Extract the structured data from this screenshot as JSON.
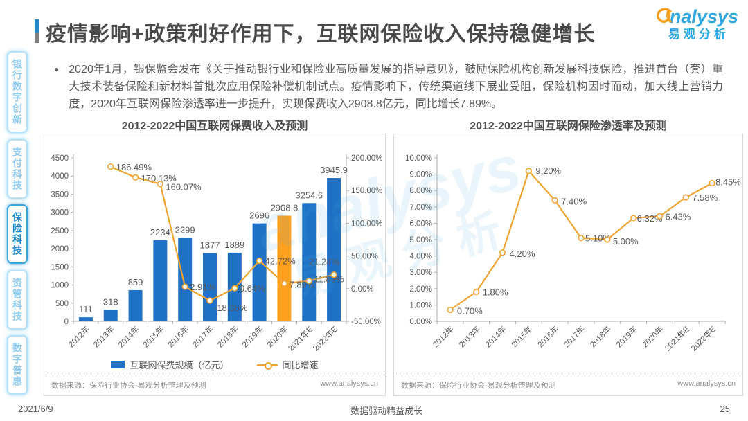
{
  "header": {
    "title": "疫情影响+政策利好作用下，互联网保险收入保持稳健增长",
    "logo": {
      "brand": "analysys",
      "brand_cn": "易观分析"
    }
  },
  "intro": {
    "bullet": "●",
    "text": "2020年1月，银保监会发布《关于推动银行业和保险业高质量发展的指导意见》，鼓励保险机构创新发展科技保险，推进首台（套）重大技术装备保险和新材料首批次应用保险补偿机制试点。疫情影响下，传统渠道线下展业受阻，保险机构因时而动，加大线上营销力度，2020年互联网保险渗透率进一步提升，实现保费收入2908.8亿元，同比增长7.89%。"
  },
  "sidebar": {
    "items": [
      {
        "label": "银行数字创新",
        "active": false
      },
      {
        "label": "支付科技",
        "active": false
      },
      {
        "label": "保险科技",
        "active": true
      },
      {
        "label": "资管科技",
        "active": false
      },
      {
        "label": "数字普惠",
        "active": false
      }
    ]
  },
  "watermark": {
    "line1": "analysys",
    "line2": "易观分析"
  },
  "chart_data": [
    {
      "type": "bar",
      "title": "2012-2022中国互联网保费收入及预测",
      "categories": [
        "2012年",
        "2013年",
        "2014年",
        "2015年",
        "2016年",
        "2017年",
        "2018年",
        "2019年",
        "2020年",
        "2021年E",
        "2022年E"
      ],
      "series": [
        {
          "name": "互联网保费规模（亿元）",
          "type": "bar",
          "axis": "left",
          "color": "#1f72c6",
          "highlight": {
            "index": 8,
            "color": "#ffa01e"
          },
          "values": [
            111,
            318,
            859,
            2234,
            2299,
            1877,
            1889,
            2696,
            2908.8,
            3254.6,
            3945.9
          ],
          "labels": [
            "111",
            "318",
            "859",
            "2234",
            "2299",
            "1877",
            "1889",
            "2696",
            "2908.8",
            "3254.6",
            "3945.9"
          ]
        },
        {
          "name": "同比增速",
          "type": "line",
          "axis": "right",
          "color": "#f0a32f",
          "start_index": 1,
          "values": [
            186.49,
            170.13,
            160.07,
            2.91,
            -18.36,
            0.64,
            42.72,
            7.89,
            11.89,
            21.24
          ],
          "labels": [
            "186.49%",
            "170.13%",
            "160.07%",
            "2.91%",
            "-18.36%",
            "0.64%",
            "42.72%",
            "7.89%",
            "11.89%",
            "21.24%"
          ],
          "label_offsets": [
            [
              8,
              5
            ],
            [
              8,
              6
            ],
            [
              8,
              9
            ],
            [
              7,
              5
            ],
            [
              6,
              15
            ],
            [
              7,
              5
            ],
            [
              8,
              5
            ],
            [
              7,
              6
            ],
            [
              7,
              2
            ],
            [
              8,
              -14,
              "end"
            ]
          ]
        }
      ],
      "axes": {
        "left": {
          "min": 0,
          "max": 4500,
          "ticks": [
            "4500",
            "4000",
            "3500",
            "3000",
            "2500",
            "2000",
            "1500",
            "1000",
            "500",
            "0"
          ]
        },
        "right": {
          "min": -50,
          "max": 200,
          "ticks": [
            "200.00%",
            "150.00%",
            "100.00%",
            "50.00%",
            "0.00%",
            "-50.00%"
          ]
        }
      },
      "legend_position": "bottom",
      "grid": false,
      "source": "数据来源：保险行业协会·易观分析整理及预测",
      "site": "www.analysys.cn"
    },
    {
      "type": "line",
      "title": "2012-2022中国互联网保险渗透率及预测",
      "categories": [
        "2012年",
        "2013年",
        "2014年",
        "2015年",
        "2016年",
        "2017年",
        "2018年",
        "2019年",
        "2020年",
        "2021年E",
        "2022年E"
      ],
      "series": [
        {
          "name": "互联网保险渗透率",
          "type": "line",
          "axis": "left",
          "color": "#f0a32f",
          "start_index": 0,
          "values": [
            0.7,
            1.8,
            4.2,
            9.2,
            7.4,
            5.1,
            5.0,
            6.32,
            6.43,
            7.58,
            8.45
          ],
          "labels": [
            "0.70%",
            "1.80%",
            "4.20%",
            "9.20%",
            "7.40%",
            "5.10%",
            "5.00%",
            "6.32%",
            "6.43%",
            "7.58%",
            "8.45%"
          ],
          "label_offsets": [
            [
              10,
              6
            ],
            [
              9,
              5
            ],
            [
              10,
              6
            ],
            [
              10,
              4
            ],
            [
              9,
              6
            ],
            [
              6,
              5
            ],
            [
              8,
              7
            ],
            [
              5,
              5
            ],
            [
              8,
              5
            ],
            [
              9,
              5
            ],
            [
              5,
              3
            ]
          ]
        }
      ],
      "axes": {
        "left": {
          "min": 0,
          "max": 10,
          "ticks": [
            "10.00%",
            "9.00%",
            "8.00%",
            "7.00%",
            "6.00%",
            "5.00%",
            "4.00%",
            "3.00%",
            "2.00%",
            "1.00%",
            "0.00%"
          ]
        }
      },
      "legend_position": "none",
      "grid": false,
      "source": "数据来源：保险行业协会·易观分析整理及预测",
      "site": "www.analysys.cn"
    }
  ],
  "footer": {
    "date": "2021/6/9",
    "slogan": "数据驱动精益成长",
    "page": "25"
  },
  "colors": {
    "bar_blue": "#1f72c6",
    "bar_highlight": "#ffa01e",
    "line_orange": "#f0a32f",
    "brand_blue": "#2ea7e0"
  }
}
